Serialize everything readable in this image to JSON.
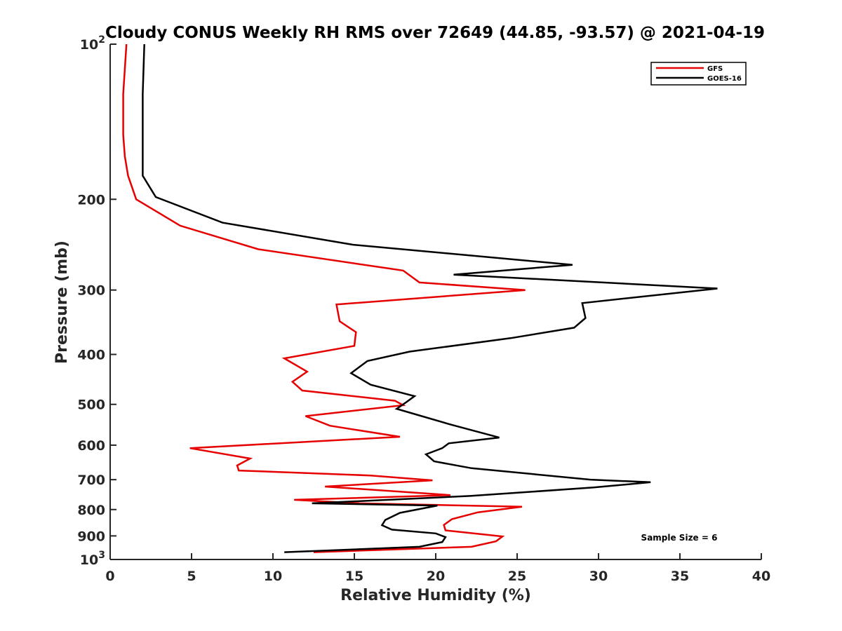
{
  "chart_data": {
    "type": "line",
    "title": "Cloudy CONUS Weekly RH RMS over 72649 (44.85, -93.57) @ 2021-04-19",
    "xlabel": "Relative Humidity (%)",
    "ylabel": "Pressure (mb)",
    "xlim": [
      0,
      40
    ],
    "ylim": [
      100,
      1000
    ],
    "y_scale": "log",
    "y_reversed": true,
    "grid": false,
    "legend_placement": "top-right",
    "x_ticks": [
      "0",
      "5",
      "10",
      "15",
      "20",
      "25",
      "30",
      "35",
      "40"
    ],
    "y_ticks": [
      {
        "value": 100,
        "base": "10",
        "exp": "2"
      },
      {
        "value": 200,
        "label": "200"
      },
      {
        "value": 300,
        "label": "300"
      },
      {
        "value": 400,
        "label": "400"
      },
      {
        "value": 500,
        "label": "500"
      },
      {
        "value": 600,
        "label": "600"
      },
      {
        "value": 700,
        "label": "700"
      },
      {
        "value": 800,
        "label": "800"
      },
      {
        "value": 900,
        "label": "900"
      },
      {
        "value": 1000,
        "base": "10",
        "exp": "3"
      }
    ],
    "series": [
      {
        "name": "GFS",
        "color": "#e60000",
        "points": [
          [
            1.0,
            100
          ],
          [
            0.8,
            125
          ],
          [
            0.8,
            150
          ],
          [
            0.9,
            165
          ],
          [
            1.1,
            180
          ],
          [
            1.6,
            200
          ],
          [
            4.3,
            225
          ],
          [
            9.1,
            250
          ],
          [
            18.0,
            275
          ],
          [
            19.0,
            290
          ],
          [
            25.5,
            300
          ],
          [
            13.9,
            320
          ],
          [
            14.1,
            345
          ],
          [
            15.1,
            362
          ],
          [
            15.0,
            385
          ],
          [
            10.7,
            407
          ],
          [
            12.1,
            432
          ],
          [
            11.2,
            452
          ],
          [
            11.8,
            470
          ],
          [
            17.5,
            492
          ],
          [
            18.0,
            502
          ],
          [
            12.0,
            527
          ],
          [
            13.5,
            550
          ],
          [
            17.8,
            578
          ],
          [
            4.9,
            608
          ],
          [
            8.6,
            637
          ],
          [
            7.8,
            657
          ],
          [
            7.9,
            672
          ],
          [
            16.0,
            687
          ],
          [
            19.8,
            702
          ],
          [
            13.2,
            722
          ],
          [
            20.9,
            750
          ],
          [
            11.3,
            766
          ],
          [
            15.3,
            778
          ],
          [
            25.3,
            790
          ],
          [
            22.6,
            810
          ],
          [
            21.0,
            835
          ],
          [
            20.5,
            857
          ],
          [
            20.6,
            878
          ],
          [
            24.1,
            902
          ],
          [
            23.7,
            922
          ],
          [
            22.2,
            945
          ],
          [
            12.5,
            968
          ]
        ]
      },
      {
        "name": "GOES-16",
        "color": "#000000",
        "points": [
          [
            2.1,
            100
          ],
          [
            2.0,
            125
          ],
          [
            2.0,
            150
          ],
          [
            2.0,
            165
          ],
          [
            2.0,
            180
          ],
          [
            2.8,
            198
          ],
          [
            6.9,
            222
          ],
          [
            14.9,
            245
          ],
          [
            28.4,
            268
          ],
          [
            21.1,
            280
          ],
          [
            37.3,
            298
          ],
          [
            29.0,
            318
          ],
          [
            29.2,
            340
          ],
          [
            28.5,
            355
          ],
          [
            24.6,
            372
          ],
          [
            18.4,
            395
          ],
          [
            15.8,
            412
          ],
          [
            14.8,
            435
          ],
          [
            16.0,
            458
          ],
          [
            18.7,
            482
          ],
          [
            18.2,
            495
          ],
          [
            17.6,
            510
          ],
          [
            20.9,
            547
          ],
          [
            23.9,
            580
          ],
          [
            20.8,
            595
          ],
          [
            20.4,
            608
          ],
          [
            19.4,
            625
          ],
          [
            19.9,
            645
          ],
          [
            22.2,
            665
          ],
          [
            29.5,
            700
          ],
          [
            33.2,
            708
          ],
          [
            29.7,
            725
          ],
          [
            22.1,
            753
          ],
          [
            12.4,
            778
          ],
          [
            20.1,
            786
          ],
          [
            17.8,
            812
          ],
          [
            16.9,
            838
          ],
          [
            16.7,
            858
          ],
          [
            17.3,
            875
          ],
          [
            20.0,
            890
          ],
          [
            20.6,
            905
          ],
          [
            20.4,
            925
          ],
          [
            19.0,
            945
          ],
          [
            10.7,
            968
          ]
        ]
      }
    ],
    "annotations": [
      "Sample Size = 6"
    ]
  }
}
